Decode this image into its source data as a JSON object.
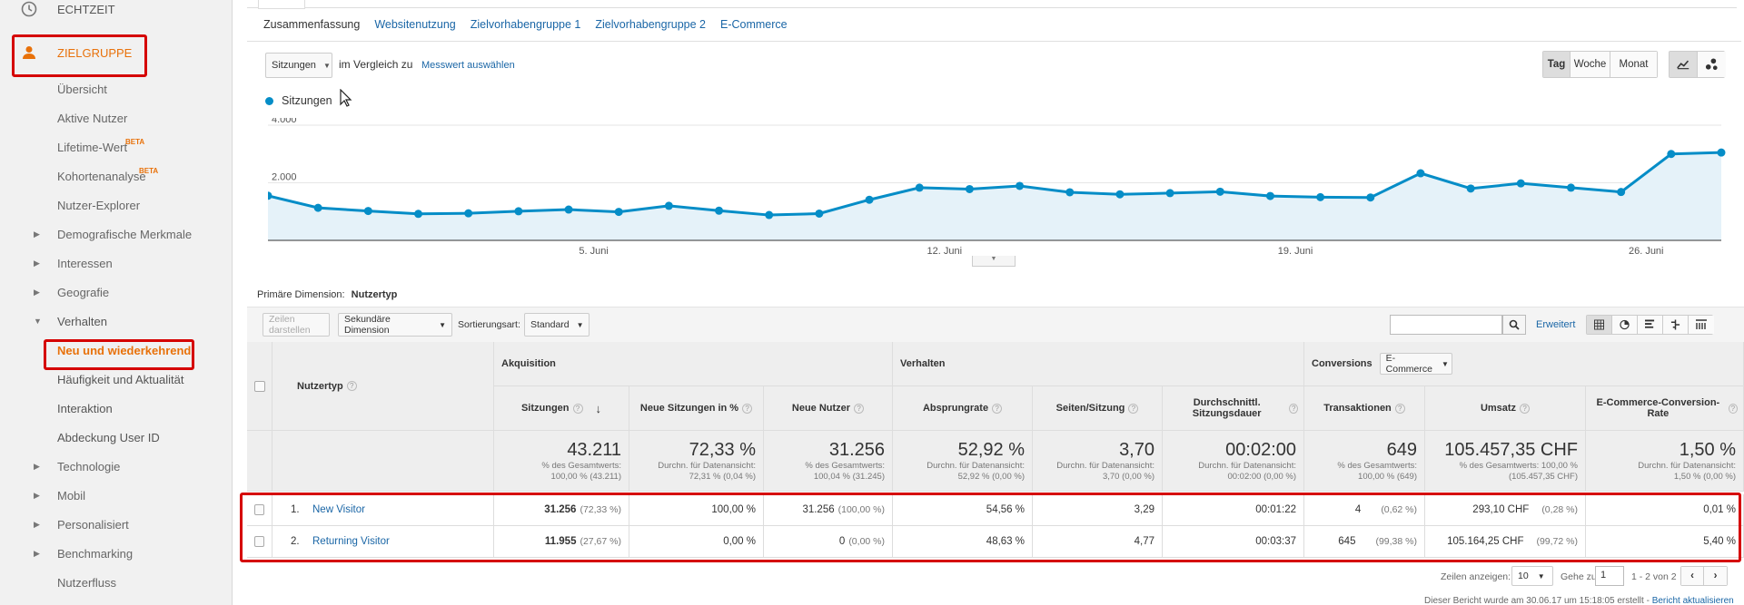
{
  "sidebar": {
    "realtime": "ECHTZEIT",
    "audience": "ZIELGRUPPE",
    "items": [
      {
        "label": "Übersicht"
      },
      {
        "label": "Aktive Nutzer"
      },
      {
        "label": "Lifetime-Wert",
        "badge": "BETA"
      },
      {
        "label": "Kohortenanalyse",
        "badge": "BETA"
      },
      {
        "label": "Nutzer-Explorer"
      },
      {
        "label": "Demografische Merkmale"
      },
      {
        "label": "Interessen"
      },
      {
        "label": "Geografie"
      },
      {
        "label": "Verhalten"
      },
      {
        "label": "Neu und wiederkehrend"
      },
      {
        "label": "Häufigkeit und Aktualität"
      },
      {
        "label": "Interaktion"
      },
      {
        "label": "Abdeckung User ID"
      },
      {
        "label": "Technologie"
      },
      {
        "label": "Mobil"
      },
      {
        "label": "Personalisiert"
      },
      {
        "label": "Benchmarking"
      },
      {
        "label": "Nutzerfluss"
      }
    ]
  },
  "subnav": [
    "Zusammenfassung",
    "Websitenutzung",
    "Zielvorhabengruppe 1",
    "Zielvorhabengruppe 2",
    "E-Commerce"
  ],
  "controls": {
    "metric": "Sitzungen",
    "compare": "im Vergleich zu",
    "choose_metric": "Messwert auswählen",
    "day": "Tag",
    "week": "Woche",
    "month": "Monat"
  },
  "colors": {
    "accent": "#058dc7",
    "highlight": "#e8710a",
    "red": "#d50000",
    "link": "#1a66a6"
  },
  "chart_data": {
    "type": "area",
    "series": [
      {
        "name": "Sitzungen",
        "values": [
          1550,
          1130,
          1020,
          920,
          940,
          1010,
          1070,
          990,
          1200,
          1030,
          880,
          930,
          1410,
          1830,
          1780,
          1890,
          1670,
          1600,
          1640,
          1690,
          1540,
          1500,
          1490,
          2330,
          1800,
          1980,
          1830,
          1680,
          3000,
          3050
        ]
      }
    ],
    "yticks": [
      "4.000",
      "2.000"
    ],
    "xticks": [
      "5. Juni",
      "12. Juni",
      "19. Juni",
      "26. Juni"
    ],
    "ylim": [
      0,
      4000
    ]
  },
  "table": {
    "primary_dim_label": "Primäre Dimension:",
    "primary_dim_value": "Nutzertyp",
    "show_rows_btn": "Zeilen darstellen",
    "secondary_dim": "Sekundäre Dimension",
    "sort_label": "Sortierungsart:",
    "sort_value": "Standard",
    "advanced": "Erweitert",
    "group_acq": "Akquisition",
    "group_beh": "Verhalten",
    "group_conv": "Conversions",
    "conv_select": "E-Commerce",
    "dim_col": "Nutzertyp",
    "columns": [
      "Sitzungen",
      "Neue Sitzungen in %",
      "Neue Nutzer",
      "Absprungrate",
      "Seiten/Sitzung",
      "Durchschnittl. Sitzungsdauer",
      "Transaktionen",
      "Umsatz",
      "E-Commerce-Conversion-Rate"
    ],
    "totals": [
      {
        "big": "43.211",
        "sub1": "% des Gesamtwerts:",
        "sub2": "100,00 % (43.211)"
      },
      {
        "big": "72,33 %",
        "sub1": "Durchn. für Datenansicht:",
        "sub2": "72,31 % (0,04 %)"
      },
      {
        "big": "31.256",
        "sub1": "% des Gesamtwerts:",
        "sub2": "100,04 % (31.245)"
      },
      {
        "big": "52,92 %",
        "sub1": "Durchn. für Datenansicht:",
        "sub2": "52,92 % (0,00 %)"
      },
      {
        "big": "3,70",
        "sub1": "Durchn. für Datenansicht:",
        "sub2": "3,70 (0,00 %)"
      },
      {
        "big": "00:02:00",
        "sub1": "Durchn. für Datenansicht:",
        "sub2": "00:02:00 (0,00 %)"
      },
      {
        "big": "649",
        "sub1": "% des Gesamtwerts:",
        "sub2": "100,00 % (649)"
      },
      {
        "big": "105.457,35 CHF",
        "sub1": "% des Gesamtwerts: 100,00 %",
        "sub2": "(105.457,35 CHF)"
      },
      {
        "big": "1,50 %",
        "sub1": "Durchn. für Datenansicht:",
        "sub2": "1,50 % (0,00 %)"
      }
    ],
    "rows": [
      {
        "idx": "1.",
        "name": "New Visitor",
        "sessions": "31.256",
        "sessions_pct": "(72,33 %)",
        "new_sess": "100,00 %",
        "new_users": "31.256",
        "new_users_pct": "(100,00 %)",
        "bounce": "54,56 %",
        "pages": "3,29",
        "duration": "00:01:22",
        "trans": "4",
        "trans_pct": "(0,62 %)",
        "revenue": "293,10 CHF",
        "revenue_pct": "(0,28 %)",
        "conv": "0,01 %"
      },
      {
        "idx": "2.",
        "name": "Returning Visitor",
        "sessions": "11.955",
        "sessions_pct": "(27,67 %)",
        "new_sess": "0,00 %",
        "new_users": "0",
        "new_users_pct": "(0,00 %)",
        "bounce": "48,63 %",
        "pages": "4,77",
        "duration": "00:03:37",
        "trans": "645",
        "trans_pct": "(99,38 %)",
        "revenue": "105.164,25 CHF",
        "revenue_pct": "(99,72 %)",
        "conv": "5,40 %"
      }
    ],
    "rows_label": "Zeilen anzeigen:",
    "rows_value": "10",
    "goto_label": "Gehe zu:",
    "goto_value": "1",
    "range": "1 - 2 von 2",
    "footer": "Dieser Bericht wurde am 30.06.17 um 15:18:05 erstellt -",
    "refresh": "Bericht aktualisieren"
  }
}
